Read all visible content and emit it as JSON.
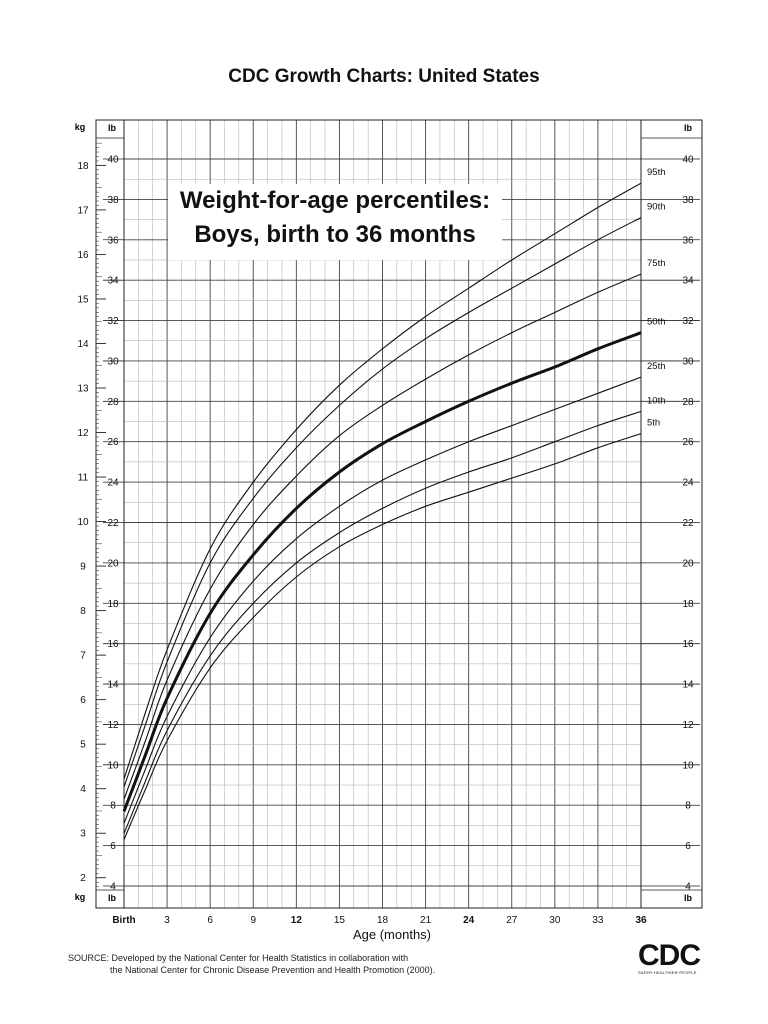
{
  "page": {
    "header": "CDC Growth Charts: United States",
    "title_line1": "Weight-for-age percentiles:",
    "title_line2": "Boys, birth to 36 months",
    "source_line1": "SOURCE: Developed by the National Center for Health Statistics in collaboration with",
    "source_line2": "the National Center for Chronic Disease Prevention and Health Promotion (2000).",
    "logo_text": "CDC",
    "logo_subtext": "SAFER·HEALTHIER·PEOPLE"
  },
  "chart_data": {
    "type": "line",
    "title": "Weight-for-age percentiles: Boys, birth to 36 months",
    "xlabel": "Age (months)",
    "unit_labels": {
      "kg": "kg",
      "lb": "lb"
    },
    "xlim": [
      0,
      36
    ],
    "ylim_lb": [
      4,
      40
    ],
    "ylim_kg": [
      1.8,
      18.5
    ],
    "x_ticks": [
      {
        "value": 0,
        "label": "Birth"
      },
      {
        "value": 3,
        "label": "3"
      },
      {
        "value": 6,
        "label": "6"
      },
      {
        "value": 9,
        "label": "9"
      },
      {
        "value": 12,
        "label": "12"
      },
      {
        "value": 15,
        "label": "15"
      },
      {
        "value": 18,
        "label": "18"
      },
      {
        "value": 21,
        "label": "21"
      },
      {
        "value": 24,
        "label": "24"
      },
      {
        "value": 27,
        "label": "27"
      },
      {
        "value": 30,
        "label": "30"
      },
      {
        "value": 33,
        "label": "33"
      },
      {
        "value": 36,
        "label": "36"
      }
    ],
    "x_bold_ticks": [
      0,
      12,
      24,
      36
    ],
    "lb_ticks": [
      4,
      6,
      8,
      10,
      12,
      14,
      16,
      18,
      20,
      22,
      24,
      26,
      28,
      30,
      32,
      34,
      36,
      38,
      40
    ],
    "kg_ticks": [
      2,
      3,
      4,
      5,
      6,
      7,
      8,
      9,
      10,
      11,
      12,
      13,
      14,
      15,
      16,
      17,
      18
    ],
    "grid": true,
    "x": [
      0,
      1.5,
      3,
      6,
      9,
      12,
      15,
      18,
      21,
      24,
      27,
      30,
      33,
      36
    ],
    "series": [
      {
        "name": "95th",
        "bold": false,
        "values_lb": [
          9.3,
          12.6,
          15.7,
          20.7,
          24.0,
          26.6,
          28.8,
          30.6,
          32.2,
          33.6,
          35.0,
          36.3,
          37.6,
          38.8
        ]
      },
      {
        "name": "90th",
        "bold": false,
        "values_lb": [
          8.9,
          12.0,
          15.1,
          20.0,
          23.2,
          25.7,
          27.8,
          29.6,
          31.1,
          32.4,
          33.6,
          34.8,
          36.0,
          37.1
        ]
      },
      {
        "name": "75th",
        "bold": false,
        "values_lb": [
          8.3,
          11.2,
          14.2,
          18.7,
          21.9,
          24.3,
          26.3,
          27.8,
          29.1,
          30.3,
          31.4,
          32.4,
          33.4,
          34.3
        ]
      },
      {
        "name": "50th",
        "bold": true,
        "values_lb": [
          7.7,
          10.5,
          13.3,
          17.5,
          20.4,
          22.7,
          24.5,
          25.9,
          27.0,
          28.0,
          28.9,
          29.7,
          30.6,
          31.4
        ]
      },
      {
        "name": "25th",
        "bold": false,
        "values_lb": [
          7.1,
          9.8,
          12.4,
          16.3,
          19.1,
          21.2,
          22.8,
          24.1,
          25.1,
          26.0,
          26.8,
          27.6,
          28.4,
          29.2
        ]
      },
      {
        "name": "10th",
        "bold": false,
        "values_lb": [
          6.6,
          9.2,
          11.7,
          15.4,
          18.0,
          20.0,
          21.5,
          22.7,
          23.7,
          24.5,
          25.2,
          26.0,
          26.8,
          27.5
        ]
      },
      {
        "name": "5th",
        "bold": false,
        "values_lb": [
          6.3,
          8.8,
          11.2,
          14.8,
          17.3,
          19.3,
          20.8,
          21.9,
          22.8,
          23.5,
          24.2,
          24.9,
          25.7,
          26.4
        ]
      }
    ]
  }
}
